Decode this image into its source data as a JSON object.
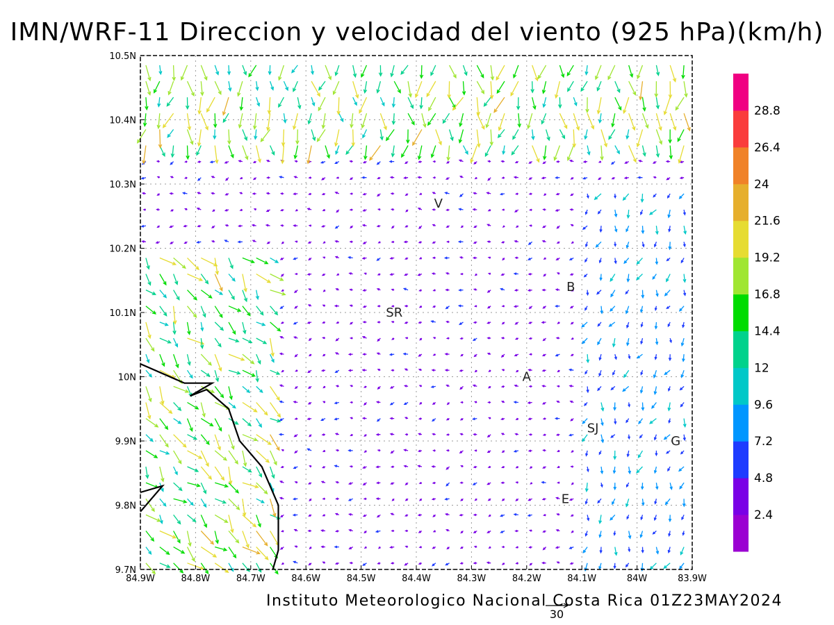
{
  "title": "IMN/WRF-11 Direccion y velocidad del viento (925 hPa)(km/h)",
  "footer": "Instituto Meteorologico Nacional Costa Rica 01Z23MAY2024",
  "reference_vector": {
    "label": "30",
    "value": 30
  },
  "chart_data": {
    "type": "vector-field",
    "variable": "wind",
    "level_hpa": 925,
    "units": "km/h",
    "valid_time": "01Z23MAY2024",
    "lon_range": [
      -84.9,
      -83.9
    ],
    "lat_range": [
      9.7,
      10.5
    ],
    "x_ticks": [
      "84.9W",
      "84.8W",
      "84.7W",
      "84.6W",
      "84.5W",
      "84.4W",
      "84.3W",
      "84.2W",
      "84.1W",
      "84W",
      "83.9W"
    ],
    "y_ticks": [
      "9.7N",
      "9.8N",
      "9.9N",
      "10N",
      "10.1N",
      "10.2N",
      "10.3N",
      "10.4N",
      "10.5N"
    ],
    "grid": true,
    "colorbar": {
      "levels": [
        "2.4",
        "4.8",
        "7.2",
        "9.6",
        "12",
        "14.4",
        "16.8",
        "19.2",
        "21.6",
        "24",
        "26.4",
        "28.8"
      ],
      "colors": [
        "#9b00d2",
        "#7a00e6",
        "#1e3cff",
        "#0096ff",
        "#00c8c8",
        "#00d28c",
        "#00dc00",
        "#a0e632",
        "#e6dc32",
        "#e6af2d",
        "#f08228",
        "#fa3c3c",
        "#f00082"
      ]
    },
    "cities": [
      {
        "label": "V",
        "lon": -84.36,
        "lat": 10.27
      },
      {
        "label": "B",
        "lon": -84.12,
        "lat": 10.14
      },
      {
        "label": "SR",
        "lon": -84.44,
        "lat": 10.1
      },
      {
        "label": "A",
        "lon": -84.2,
        "lat": 10.0
      },
      {
        "label": "SJ",
        "lon": -84.08,
        "lat": 9.92
      },
      {
        "label": "G",
        "lon": -83.93,
        "lat": 9.9
      },
      {
        "label": "E",
        "lon": -84.13,
        "lat": 9.81
      }
    ],
    "coastline": [
      [
        -84.9,
        10.02
      ],
      [
        -84.82,
        9.99
      ],
      [
        -84.77,
        9.99
      ],
      [
        -84.81,
        9.97
      ],
      [
        -84.78,
        9.98
      ],
      [
        -84.74,
        9.95
      ],
      [
        -84.72,
        9.9
      ],
      [
        -84.71,
        9.89
      ],
      [
        -84.68,
        9.86
      ],
      [
        -84.65,
        9.8
      ],
      [
        -84.65,
        9.73
      ],
      [
        -84.66,
        9.7
      ]
    ],
    "coastline_nicoya": [
      [
        -84.9,
        9.82
      ],
      [
        -84.86,
        9.83
      ],
      [
        -84.9,
        9.79
      ]
    ],
    "regions": [
      {
        "name": "northern-band",
        "lat_min": 10.35,
        "lat_max": 10.5,
        "lon_min": -84.9,
        "lon_max": -83.9,
        "dir_deg": 185,
        "speed_kmh": 17
      },
      {
        "name": "southwest-pacific",
        "lat_min": 9.7,
        "lat_max": 10.2,
        "lon_min": -84.9,
        "lon_max": -84.65,
        "dir_deg": 140,
        "speed_kmh": 17
      },
      {
        "name": "central-valley",
        "lat_min": 9.85,
        "lat_max": 10.3,
        "lon_min": -84.6,
        "lon_max": -84.1,
        "dir_deg": 260,
        "speed_kmh": 4
      },
      {
        "name": "east",
        "lat_min": 9.7,
        "lat_max": 10.3,
        "lon_min": -84.1,
        "lon_max": -83.9,
        "dir_deg": 200,
        "speed_kmh": 8
      }
    ]
  }
}
